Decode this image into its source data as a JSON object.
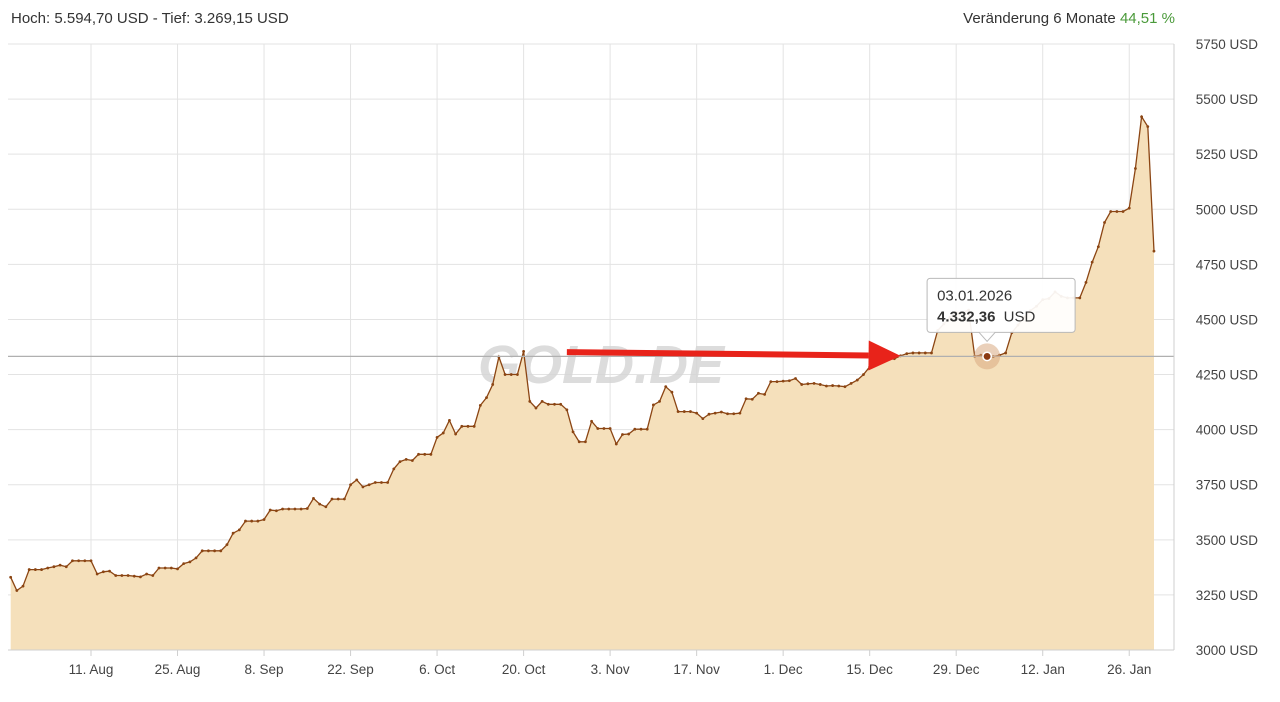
{
  "header": {
    "range_text": "Hoch: 5.594,70 USD - Tief: 3.269,15 USD",
    "change_label": "Veränderung 6 Monate",
    "change_value": "44,51 %"
  },
  "watermark": "GOLD.DE",
  "tooltip": {
    "date": "03.01.2026",
    "value": "4.332,36",
    "unit": "USD"
  },
  "colors": {
    "line": "#8b4513",
    "fill": "#f5e0bb",
    "arrow": "#e8231a",
    "change": "#4a9a3a",
    "grid": "#e3e3e3"
  },
  "chart_data": {
    "type": "area",
    "ylim": [
      3000,
      5750
    ],
    "yticks": [
      3000,
      3250,
      3500,
      3750,
      4000,
      4250,
      4500,
      4750,
      5000,
      5250,
      5500,
      5750
    ],
    "ytick_labels": [
      "3000 USD",
      "3250 USD",
      "3500 USD",
      "3750 USD",
      "4000 USD",
      "4250 USD",
      "4500 USD",
      "4750 USD",
      "5000 USD",
      "5250 USD",
      "5500 USD",
      "5750 USD"
    ],
    "xlim": [
      "2025-07-28",
      "2026-02-01"
    ],
    "xticks": [
      "2025-08-11",
      "2025-08-25",
      "2025-09-08",
      "2025-09-22",
      "2025-10-06",
      "2025-10-20",
      "2025-11-03",
      "2025-11-17",
      "2025-12-01",
      "2025-12-15",
      "2025-12-29",
      "2026-01-12",
      "2026-01-26"
    ],
    "xtick_labels": [
      "11. Aug",
      "25. Aug",
      "8. Sep",
      "22. Sep",
      "6. Oct",
      "20. Oct",
      "3. Nov",
      "17. Nov",
      "1. Dec",
      "15. Dec",
      "29. Dec",
      "12. Jan",
      "26. Jan"
    ],
    "crosshair_y": 4332.36,
    "arrow": {
      "from": [
        "2025-10-27",
        4352
      ],
      "to": [
        "2025-12-20",
        4335
      ]
    },
    "highlight": [
      "2026-01-03",
      4332.36
    ],
    "series": [
      {
        "points": [
          [
            "2025-07-29",
            3330
          ],
          [
            "2025-07-30",
            3270
          ],
          [
            "2025-07-31",
            3290
          ],
          [
            "2025-08-01",
            3365
          ],
          [
            "2025-08-02",
            3365
          ],
          [
            "2025-08-03",
            3365
          ],
          [
            "2025-08-04",
            3372
          ],
          [
            "2025-08-05",
            3378
          ],
          [
            "2025-08-06",
            3385
          ],
          [
            "2025-08-07",
            3378
          ],
          [
            "2025-08-08",
            3405
          ],
          [
            "2025-08-09",
            3405
          ],
          [
            "2025-08-10",
            3405
          ],
          [
            "2025-08-11",
            3405
          ],
          [
            "2025-08-12",
            3345
          ],
          [
            "2025-08-13",
            3355
          ],
          [
            "2025-08-14",
            3358
          ],
          [
            "2025-08-15",
            3338
          ],
          [
            "2025-08-16",
            3338
          ],
          [
            "2025-08-17",
            3338
          ],
          [
            "2025-08-18",
            3335
          ],
          [
            "2025-08-19",
            3332
          ],
          [
            "2025-08-20",
            3345
          ],
          [
            "2025-08-21",
            3338
          ],
          [
            "2025-08-22",
            3372
          ],
          [
            "2025-08-23",
            3372
          ],
          [
            "2025-08-24",
            3372
          ],
          [
            "2025-08-25",
            3368
          ],
          [
            "2025-08-26",
            3392
          ],
          [
            "2025-08-27",
            3400
          ],
          [
            "2025-08-28",
            3418
          ],
          [
            "2025-08-29",
            3450
          ],
          [
            "2025-08-30",
            3450
          ],
          [
            "2025-08-31",
            3450
          ],
          [
            "2025-09-01",
            3450
          ],
          [
            "2025-09-02",
            3478
          ],
          [
            "2025-09-03",
            3530
          ],
          [
            "2025-09-04",
            3545
          ],
          [
            "2025-09-05",
            3585
          ],
          [
            "2025-09-06",
            3585
          ],
          [
            "2025-09-07",
            3585
          ],
          [
            "2025-09-08",
            3592
          ],
          [
            "2025-09-09",
            3635
          ],
          [
            "2025-09-10",
            3632
          ],
          [
            "2025-09-11",
            3640
          ],
          [
            "2025-09-12",
            3640
          ],
          [
            "2025-09-13",
            3640
          ],
          [
            "2025-09-14",
            3640
          ],
          [
            "2025-09-15",
            3642
          ],
          [
            "2025-09-16",
            3688
          ],
          [
            "2025-09-17",
            3662
          ],
          [
            "2025-09-18",
            3650
          ],
          [
            "2025-09-19",
            3685
          ],
          [
            "2025-09-20",
            3685
          ],
          [
            "2025-09-21",
            3685
          ],
          [
            "2025-09-22",
            3750
          ],
          [
            "2025-09-23",
            3772
          ],
          [
            "2025-09-24",
            3740
          ],
          [
            "2025-09-25",
            3750
          ],
          [
            "2025-09-26",
            3760
          ],
          [
            "2025-09-27",
            3760
          ],
          [
            "2025-09-28",
            3760
          ],
          [
            "2025-09-29",
            3822
          ],
          [
            "2025-09-30",
            3855
          ],
          [
            "2025-10-01",
            3865
          ],
          [
            "2025-10-02",
            3860
          ],
          [
            "2025-10-03",
            3888
          ],
          [
            "2025-10-04",
            3888
          ],
          [
            "2025-10-05",
            3888
          ],
          [
            "2025-10-06",
            3965
          ],
          [
            "2025-10-07",
            3985
          ],
          [
            "2025-10-08",
            4042
          ],
          [
            "2025-10-09",
            3980
          ],
          [
            "2025-10-10",
            4015
          ],
          [
            "2025-10-11",
            4015
          ],
          [
            "2025-10-12",
            4015
          ],
          [
            "2025-10-13",
            4110
          ],
          [
            "2025-10-14",
            4145
          ],
          [
            "2025-10-15",
            4205
          ],
          [
            "2025-10-16",
            4330
          ],
          [
            "2025-10-17",
            4250
          ],
          [
            "2025-10-18",
            4250
          ],
          [
            "2025-10-19",
            4250
          ],
          [
            "2025-10-20",
            4355
          ],
          [
            "2025-10-21",
            4128
          ],
          [
            "2025-10-22",
            4098
          ],
          [
            "2025-10-23",
            4128
          ],
          [
            "2025-10-24",
            4115
          ],
          [
            "2025-10-25",
            4115
          ],
          [
            "2025-10-26",
            4115
          ],
          [
            "2025-10-27",
            4090
          ],
          [
            "2025-10-28",
            3990
          ],
          [
            "2025-10-29",
            3945
          ],
          [
            "2025-10-30",
            3945
          ],
          [
            "2025-10-31",
            4038
          ],
          [
            "2025-11-01",
            4005
          ],
          [
            "2025-11-02",
            4005
          ],
          [
            "2025-11-03",
            4005
          ],
          [
            "2025-11-04",
            3935
          ],
          [
            "2025-11-05",
            3978
          ],
          [
            "2025-11-06",
            3980
          ],
          [
            "2025-11-07",
            4002
          ],
          [
            "2025-11-08",
            4002
          ],
          [
            "2025-11-09",
            4002
          ],
          [
            "2025-11-10",
            4112
          ],
          [
            "2025-11-11",
            4128
          ],
          [
            "2025-11-12",
            4195
          ],
          [
            "2025-11-13",
            4170
          ],
          [
            "2025-11-14",
            4082
          ],
          [
            "2025-11-15",
            4082
          ],
          [
            "2025-11-16",
            4082
          ],
          [
            "2025-11-17",
            4075
          ],
          [
            "2025-11-18",
            4050
          ],
          [
            "2025-11-19",
            4070
          ],
          [
            "2025-11-20",
            4075
          ],
          [
            "2025-11-21",
            4080
          ],
          [
            "2025-11-22",
            4072
          ],
          [
            "2025-11-23",
            4072
          ],
          [
            "2025-11-24",
            4075
          ],
          [
            "2025-11-25",
            4140
          ],
          [
            "2025-11-26",
            4138
          ],
          [
            "2025-11-27",
            4165
          ],
          [
            "2025-11-28",
            4160
          ],
          [
            "2025-11-29",
            4218
          ],
          [
            "2025-11-30",
            4218
          ],
          [
            "2025-12-01",
            4220
          ],
          [
            "2025-12-02",
            4222
          ],
          [
            "2025-12-03",
            4232
          ],
          [
            "2025-12-04",
            4205
          ],
          [
            "2025-12-05",
            4208
          ],
          [
            "2025-12-06",
            4210
          ],
          [
            "2025-12-07",
            4205
          ],
          [
            "2025-12-08",
            4198
          ],
          [
            "2025-12-09",
            4200
          ],
          [
            "2025-12-10",
            4198
          ],
          [
            "2025-12-11",
            4195
          ],
          [
            "2025-12-12",
            4210
          ],
          [
            "2025-12-13",
            4225
          ],
          [
            "2025-12-14",
            4250
          ],
          [
            "2025-12-15",
            4285
          ],
          [
            "2025-12-16",
            4298
          ],
          [
            "2025-12-17",
            4318
          ],
          [
            "2025-12-18",
            4318
          ],
          [
            "2025-12-19",
            4322
          ],
          [
            "2025-12-20",
            4335
          ],
          [
            "2025-12-21",
            4345
          ],
          [
            "2025-12-22",
            4348
          ],
          [
            "2025-12-23",
            4348
          ],
          [
            "2025-12-24",
            4348
          ],
          [
            "2025-12-25",
            4348
          ],
          [
            "2025-12-26",
            4450
          ],
          [
            "2025-12-27",
            4480
          ],
          [
            "2025-12-28",
            4510
          ],
          [
            "2025-12-29",
            4532
          ],
          [
            "2025-12-30",
            4530
          ],
          [
            "2025-12-31",
            4542
          ],
          [
            "2026-01-01",
            4333
          ],
          [
            "2026-01-02",
            4338
          ],
          [
            "2026-01-03",
            4332.36
          ],
          [
            "2026-01-04",
            4332
          ],
          [
            "2026-01-05",
            4338
          ],
          [
            "2026-01-06",
            4348
          ],
          [
            "2026-01-07",
            4440
          ],
          [
            "2026-01-08",
            4475
          ],
          [
            "2026-01-09",
            4510
          ],
          [
            "2026-01-10",
            4540
          ],
          [
            "2026-01-11",
            4560
          ],
          [
            "2026-01-12",
            4590
          ],
          [
            "2026-01-13",
            4595
          ],
          [
            "2026-01-14",
            4625
          ],
          [
            "2026-01-15",
            4605
          ],
          [
            "2026-01-16",
            4598
          ],
          [
            "2026-01-17",
            4598
          ],
          [
            "2026-01-18",
            4598
          ],
          [
            "2026-01-19",
            4668
          ],
          [
            "2026-01-20",
            4760
          ],
          [
            "2026-01-21",
            4830
          ],
          [
            "2026-01-22",
            4940
          ],
          [
            "2026-01-23",
            4990
          ],
          [
            "2026-01-24",
            4990
          ],
          [
            "2026-01-25",
            4990
          ],
          [
            "2026-01-26",
            5005
          ],
          [
            "2026-01-27",
            5185
          ],
          [
            "2026-01-28",
            5420
          ],
          [
            "2026-01-29",
            5375
          ],
          [
            "2026-01-30",
            4810
          ]
        ]
      }
    ]
  }
}
